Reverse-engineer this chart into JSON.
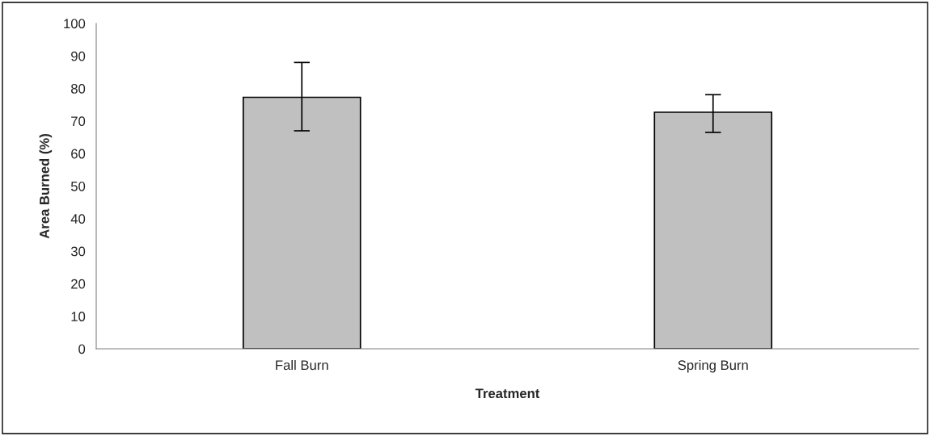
{
  "chart_data": {
    "type": "bar",
    "xlabel": "Treatment",
    "ylabel": "Area Burned (%)",
    "categories": [
      "Fall Burn",
      "Spring Burn"
    ],
    "values": [
      77.3,
      72.7
    ],
    "errors": [
      [
        67.0,
        88.0
      ],
      [
        66.5,
        78.1
      ]
    ],
    "color": "#c0c0c0",
    "ylim": [
      0,
      100
    ],
    "yticks": [
      0,
      10,
      20,
      30,
      40,
      50,
      60,
      70,
      80,
      90,
      100
    ],
    "grid": false
  }
}
